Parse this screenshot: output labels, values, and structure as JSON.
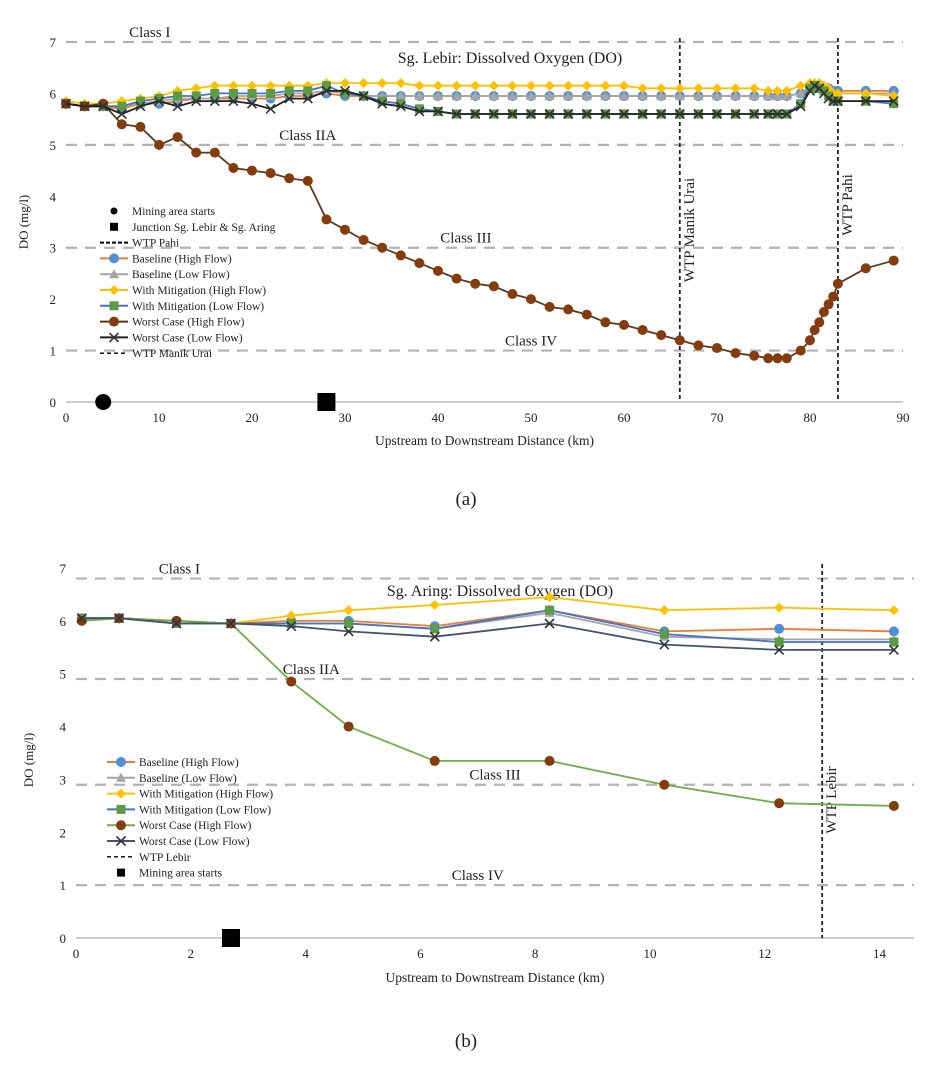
{
  "chart_data": [
    {
      "id": "a",
      "type": "line",
      "caption": "(a)",
      "title": "Sg. Lebir: Dissolved Oxygen (DO)",
      "xlabel": "Upstream to Downstream Distance (km)",
      "ylabel": "DO (mg/l)",
      "xlim": [
        0,
        90
      ],
      "ylim": [
        0,
        7
      ],
      "xticks": [
        "0",
        "10",
        "20",
        "30",
        "40",
        "50",
        "60",
        "70",
        "80",
        "90"
      ],
      "yticks": [
        "0",
        "1",
        "2",
        "3",
        "4",
        "5",
        "6",
        "7"
      ],
      "class_lines": [
        {
          "label": "Class I",
          "y": 7.0,
          "label_x": 9
        },
        {
          "label": "Class IIA",
          "y": 5.0,
          "label_x": 26
        },
        {
          "label": "Class III",
          "y": 3.0,
          "label_x": 43
        },
        {
          "label": "Class IV",
          "y": 1.0,
          "label_x": 50
        }
      ],
      "vlines": [
        {
          "label": "WTP Manik Urai",
          "x": 66
        },
        {
          "label": "WTP Pahi",
          "x": 83
        }
      ],
      "markers": [
        {
          "label": "Mining area starts",
          "x": 4,
          "y": 0,
          "shape": "circle"
        },
        {
          "label": "Junction Sg. Lebir & Sg. Aring",
          "x": 28,
          "y": 0,
          "shape": "square"
        }
      ],
      "x": [
        0,
        2,
        4,
        6,
        8,
        10,
        12,
        14,
        16,
        18,
        20,
        22,
        24,
        26,
        28,
        30,
        32,
        34,
        36,
        38,
        40,
        42,
        44,
        46,
        48,
        50,
        52,
        54,
        56,
        58,
        60,
        62,
        64,
        66,
        68,
        70,
        72,
        74,
        75.5,
        76.5,
        77.5,
        79,
        80,
        80.5,
        81,
        81.5,
        82,
        82.5,
        83,
        86,
        89
      ],
      "series": [
        {
          "name": "Baseline (High Flow)",
          "color": "#4f8fd6",
          "line_color": "#ed7d31",
          "marker": "circle",
          "values": [
            5.8,
            5.75,
            5.75,
            5.7,
            5.8,
            5.8,
            5.85,
            5.9,
            5.9,
            5.9,
            5.9,
            5.9,
            5.95,
            5.95,
            6.0,
            5.95,
            5.95,
            5.95,
            5.95,
            5.95,
            5.95,
            5.95,
            5.95,
            5.95,
            5.95,
            5.95,
            5.95,
            5.95,
            5.95,
            5.95,
            5.95,
            5.95,
            5.95,
            5.95,
            5.95,
            5.95,
            5.95,
            5.95,
            5.95,
            5.95,
            5.95,
            6.0,
            6.1,
            6.1,
            6.1,
            6.1,
            6.1,
            6.05,
            6.05,
            6.05,
            6.05
          ]
        },
        {
          "name": "Baseline (Low Flow)",
          "color": "#a5a5a5",
          "line_color": "#a5a5a5",
          "marker": "triangle",
          "values": [
            5.8,
            5.75,
            5.75,
            5.75,
            5.8,
            5.85,
            5.9,
            5.9,
            5.9,
            5.95,
            5.95,
            5.95,
            6.0,
            6.0,
            6.05,
            6.0,
            5.95,
            5.95,
            5.95,
            5.95,
            5.95,
            5.95,
            5.95,
            5.95,
            5.95,
            5.95,
            5.95,
            5.95,
            5.95,
            5.95,
            5.95,
            5.95,
            5.95,
            5.95,
            5.95,
            5.95,
            5.95,
            5.95,
            5.95,
            5.95,
            5.95,
            6.0,
            6.1,
            6.1,
            6.1,
            6.1,
            6.05,
            6.0,
            6.0,
            6.0,
            6.0
          ]
        },
        {
          "name": "With Mitigation (High Flow)",
          "color": "#ffc000",
          "line_color": "#ffc000",
          "marker": "diamond",
          "values": [
            5.85,
            5.8,
            5.8,
            5.85,
            5.9,
            5.95,
            6.05,
            6.1,
            6.15,
            6.15,
            6.15,
            6.15,
            6.15,
            6.15,
            6.2,
            6.2,
            6.2,
            6.2,
            6.2,
            6.15,
            6.15,
            6.15,
            6.15,
            6.15,
            6.15,
            6.15,
            6.15,
            6.15,
            6.15,
            6.15,
            6.15,
            6.1,
            6.1,
            6.1,
            6.1,
            6.1,
            6.1,
            6.1,
            6.05,
            6.05,
            6.05,
            6.15,
            6.2,
            6.2,
            6.2,
            6.15,
            6.1,
            6.0,
            6.0,
            6.0,
            5.95
          ]
        },
        {
          "name": "With Mitigation (Low Flow)",
          "color": "#5b9a47",
          "line_color": "#4472c4",
          "marker": "square",
          "values": [
            5.8,
            5.75,
            5.75,
            5.75,
            5.85,
            5.9,
            5.95,
            5.95,
            6.0,
            6.0,
            6.0,
            6.0,
            6.05,
            6.05,
            6.15,
            6.0,
            5.95,
            5.85,
            5.8,
            5.7,
            5.65,
            5.6,
            5.6,
            5.6,
            5.6,
            5.6,
            5.6,
            5.6,
            5.6,
            5.6,
            5.6,
            5.6,
            5.6,
            5.6,
            5.6,
            5.6,
            5.6,
            5.6,
            5.6,
            5.6,
            5.6,
            5.8,
            6.1,
            6.15,
            6.1,
            6.05,
            5.95,
            5.85,
            5.85,
            5.85,
            5.8
          ]
        },
        {
          "name": "Worst Case (High Flow)",
          "color": "#843c0c",
          "line_color": "#5b3a1a",
          "marker": "circle",
          "values": [
            5.8,
            5.75,
            5.8,
            5.4,
            5.35,
            5.0,
            5.15,
            4.85,
            4.85,
            4.55,
            4.5,
            4.45,
            4.35,
            4.3,
            3.55,
            3.35,
            3.15,
            3.0,
            2.85,
            2.7,
            2.55,
            2.4,
            2.3,
            2.25,
            2.1,
            2.0,
            1.85,
            1.8,
            1.7,
            1.55,
            1.5,
            1.4,
            1.3,
            1.2,
            1.1,
            1.05,
            0.95,
            0.9,
            0.85,
            0.85,
            0.85,
            1.0,
            1.2,
            1.4,
            1.55,
            1.75,
            1.9,
            2.05,
            2.3,
            2.6,
            2.75
          ]
        },
        {
          "name": "Worst Case (Low Flow)",
          "color": "#333333",
          "line_color": "#222222",
          "marker": "x",
          "values": [
            5.8,
            5.75,
            5.75,
            5.6,
            5.75,
            5.85,
            5.75,
            5.85,
            5.85,
            5.85,
            5.8,
            5.7,
            5.9,
            5.9,
            6.05,
            6.05,
            5.95,
            5.8,
            5.75,
            5.65,
            5.65,
            5.6,
            5.6,
            5.6,
            5.6,
            5.6,
            5.6,
            5.6,
            5.6,
            5.6,
            5.6,
            5.6,
            5.6,
            5.6,
            5.6,
            5.6,
            5.6,
            5.6,
            5.6,
            5.6,
            5.6,
            5.75,
            6.05,
            6.15,
            6.1,
            6.0,
            5.9,
            5.85,
            5.85,
            5.85,
            5.85
          ]
        }
      ],
      "legend": [
        {
          "label": "Mining area starts",
          "kind": "dot"
        },
        {
          "label": "Junction Sg. Lebir & Sg. Aring",
          "kind": "square"
        },
        {
          "label": "WTP Pahi",
          "kind": "dash-bold"
        },
        {
          "label": "Baseline (High Flow)",
          "kind": "series",
          "series": 0
        },
        {
          "label": "Baseline (Low Flow)",
          "kind": "series",
          "series": 1
        },
        {
          "label": "With Mitigation (High Flow)",
          "kind": "series",
          "series": 2
        },
        {
          "label": "With Mitigation (Low Flow)",
          "kind": "series",
          "series": 3
        },
        {
          "label": "Worst Case (High Flow)",
          "kind": "series",
          "series": 4
        },
        {
          "label": "Worst Case (Low Flow)",
          "kind": "series",
          "series": 5
        },
        {
          "label": "WTP Manik Urai",
          "kind": "dash"
        }
      ]
    },
    {
      "id": "b",
      "type": "line",
      "caption": "(b)",
      "title": "Sg. Aring: Dissolved Oxygen (DO)",
      "xlabel": "Upstream to Downstream Distance (km)",
      "ylabel": "DO (mg/l)",
      "xlim": [
        0,
        14.6
      ],
      "ylim": [
        0,
        7
      ],
      "xticks": [
        "0",
        "2",
        "4",
        "6",
        "8",
        "10",
        "12",
        "14"
      ],
      "xtick_values": [
        0,
        2,
        4,
        6,
        8,
        10,
        12,
        14
      ],
      "yticks": [
        "0",
        "1",
        "2",
        "3",
        "4",
        "5",
        "6",
        "7"
      ],
      "class_lines": [
        {
          "label": "Class I",
          "y": 6.8,
          "label_x": 1.8
        },
        {
          "label": "Class IIA",
          "y": 4.9,
          "label_x": 4.1
        },
        {
          "label": "Class III",
          "y": 2.9,
          "label_x": 7.3
        },
        {
          "label": "Class IV",
          "y": 1.0,
          "label_x": 7.0
        }
      ],
      "vlines": [
        {
          "label": "WTP Lebir",
          "x": 13.0
        }
      ],
      "markers": [
        {
          "label": "Mining area starts",
          "x": 2.7,
          "y": 0,
          "shape": "square"
        }
      ],
      "x": [
        0.1,
        0.75,
        1.75,
        2.7,
        3.75,
        4.75,
        6.25,
        8.25,
        10.25,
        12.25,
        14.25
      ],
      "series": [
        {
          "name": "Baseline (High Flow)",
          "color": "#4f8fd6",
          "line_color": "#ed7d31",
          "marker": "circle",
          "values": [
            6.05,
            6.05,
            6.0,
            5.95,
            6.0,
            6.0,
            5.9,
            6.2,
            5.8,
            5.85,
            5.8
          ]
        },
        {
          "name": "Baseline (Low Flow)",
          "color": "#a5a5a5",
          "line_color": "#a5a5a5",
          "marker": "triangle",
          "values": [
            6.05,
            6.05,
            6.0,
            5.95,
            5.95,
            5.95,
            5.85,
            6.15,
            5.7,
            5.65,
            5.65
          ]
        },
        {
          "name": "With Mitigation (High Flow)",
          "color": "#ffc000",
          "line_color": "#ffc000",
          "marker": "diamond",
          "values": [
            6.05,
            6.05,
            6.0,
            5.95,
            6.1,
            6.2,
            6.3,
            6.45,
            6.2,
            6.25,
            6.2
          ]
        },
        {
          "name": "With Mitigation (Low Flow)",
          "color": "#5b9a47",
          "line_color": "#4472c4",
          "marker": "square",
          "values": [
            6.05,
            6.05,
            5.95,
            5.95,
            5.95,
            5.95,
            5.85,
            6.2,
            5.75,
            5.6,
            5.6
          ]
        },
        {
          "name": "Worst Case (High Flow)",
          "color": "#843c0c",
          "line_color": "#70ad47",
          "marker": "circle",
          "values": [
            6.0,
            6.05,
            6.0,
            5.95,
            4.85,
            4.0,
            3.35,
            3.35,
            2.9,
            2.55,
            2.5
          ]
        },
        {
          "name": "Worst Case (Low Flow)",
          "color": "#333333",
          "line_color": "#44546a",
          "marker": "x",
          "values": [
            6.05,
            6.05,
            5.95,
            5.95,
            5.9,
            5.8,
            5.7,
            5.95,
            5.55,
            5.45,
            5.45
          ]
        }
      ],
      "legend": [
        {
          "label": "Baseline (High Flow)",
          "kind": "series",
          "series": 0
        },
        {
          "label": "Baseline (Low Flow)",
          "kind": "series",
          "series": 1
        },
        {
          "label": "With Mitigation (High Flow)",
          "kind": "series",
          "series": 2
        },
        {
          "label": "With Mitigation (Low Flow)",
          "kind": "series",
          "series": 3
        },
        {
          "label": "Worst Case (High Flow)",
          "kind": "series",
          "series": 4
        },
        {
          "label": "Worst Case (Low Flow)",
          "kind": "series",
          "series": 5
        },
        {
          "label": "WTP Lebir",
          "kind": "dash"
        },
        {
          "label": "Mining area starts",
          "kind": "square"
        }
      ]
    }
  ]
}
